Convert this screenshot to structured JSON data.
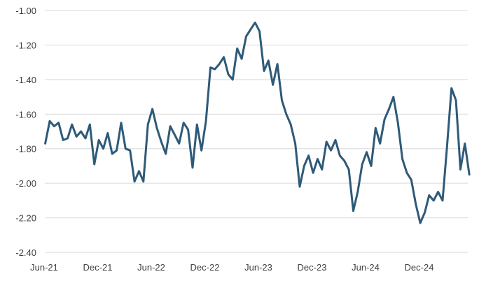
{
  "chart_data": {
    "type": "line",
    "title": "",
    "xlabel": "",
    "ylabel": "",
    "ylim": [
      -2.4,
      -1.0
    ],
    "grid": "horizontal",
    "yticks": [
      -1.0,
      -1.2,
      -1.4,
      -1.6,
      -1.8,
      -2.0,
      -2.2,
      -2.4
    ],
    "ytick_labels": [
      "-1.00",
      "-1.20",
      "-1.40",
      "-1.60",
      "-1.80",
      "-2.00",
      "-2.20",
      "-2.40"
    ],
    "xticks": [
      "2021-06",
      "2021-12",
      "2022-06",
      "2022-12",
      "2023-06",
      "2023-12",
      "2024-06",
      "2024-12"
    ],
    "xtick_labels": [
      "Jun-21",
      "Dec-21",
      "Jun-22",
      "Dec-22",
      "Jun-23",
      "Dec-23",
      "Jun-24",
      "Dec-24"
    ],
    "xlim": [
      "2021-06",
      "2025-06"
    ],
    "colors": {
      "line": "#2e5a78"
    },
    "series": [
      {
        "x": [
          "2021-06",
          "2021-06",
          "2021-07",
          "2021-07",
          "2021-08",
          "2021-08",
          "2021-09",
          "2021-09",
          "2021-10",
          "2021-10",
          "2021-11",
          "2021-11",
          "2021-12",
          "2021-12",
          "2022-01",
          "2022-01",
          "2022-02",
          "2022-02",
          "2022-03",
          "2022-03",
          "2022-04",
          "2022-04",
          "2022-05",
          "2022-05",
          "2022-06",
          "2022-06",
          "2022-07",
          "2022-07",
          "2022-08",
          "2022-08",
          "2022-09",
          "2022-09",
          "2022-10",
          "2022-10",
          "2022-11",
          "2022-11",
          "2022-12",
          "2022-12",
          "2023-01",
          "2023-01",
          "2023-02",
          "2023-02",
          "2023-03",
          "2023-03",
          "2023-04",
          "2023-04",
          "2023-05",
          "2023-05",
          "2023-06",
          "2023-06",
          "2023-07",
          "2023-07",
          "2023-08",
          "2023-08",
          "2023-09",
          "2023-09",
          "2023-10",
          "2023-10",
          "2023-11",
          "2023-11",
          "2023-12",
          "2023-12",
          "2024-01",
          "2024-01",
          "2024-02",
          "2024-02",
          "2024-03",
          "2024-03",
          "2024-04",
          "2024-04",
          "2024-05",
          "2024-05",
          "2024-06",
          "2024-06",
          "2024-07",
          "2024-07",
          "2024-08",
          "2024-08",
          "2024-09",
          "2024-09",
          "2024-10",
          "2024-10",
          "2024-11",
          "2024-11",
          "2024-12",
          "2024-12",
          "2025-01",
          "2025-01",
          "2025-02",
          "2025-02",
          "2025-03",
          "2025-03",
          "2025-04",
          "2025-04",
          "2025-05",
          "2025-05"
        ],
        "values": [
          -1.77,
          -1.64,
          -1.67,
          -1.65,
          -1.75,
          -1.74,
          -1.66,
          -1.73,
          -1.7,
          -1.74,
          -1.66,
          -1.89,
          -1.75,
          -1.8,
          -1.71,
          -1.83,
          -1.81,
          -1.65,
          -1.8,
          -1.81,
          -1.99,
          -1.93,
          -1.99,
          -1.66,
          -1.57,
          -1.68,
          -1.76,
          -1.83,
          -1.67,
          -1.72,
          -1.77,
          -1.65,
          -1.69,
          -1.91,
          -1.66,
          -1.81,
          -1.64,
          -1.33,
          -1.34,
          -1.31,
          -1.27,
          -1.37,
          -1.4,
          -1.22,
          -1.28,
          -1.15,
          -1.11,
          -1.07,
          -1.12,
          -1.35,
          -1.29,
          -1.43,
          -1.31,
          -1.52,
          -1.6,
          -1.66,
          -1.77,
          -2.02,
          -1.9,
          -1.84,
          -1.94,
          -1.86,
          -1.92,
          -1.76,
          -1.81,
          -1.75,
          -1.84,
          -1.87,
          -1.92,
          -2.16,
          -2.05,
          -1.89,
          -1.82,
          -1.9,
          -1.68,
          -1.77,
          -1.63,
          -1.57,
          -1.5,
          -1.65,
          -1.86,
          -1.94,
          -1.98,
          -2.12,
          -2.23,
          -2.17,
          -2.07,
          -2.1,
          -2.05,
          -2.1,
          -1.79,
          -1.45,
          -1.52,
          -1.92,
          -1.77,
          -1.95
        ]
      }
    ]
  }
}
